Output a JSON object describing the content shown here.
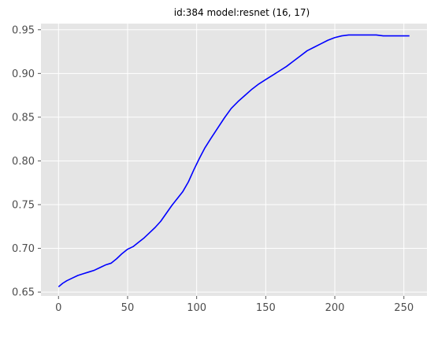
{
  "chart_data": {
    "type": "line",
    "title": "id:384 model:resnet (16, 17)",
    "xlabel": "",
    "ylabel": "",
    "xlim": [
      -12.7,
      266.7
    ],
    "ylim": [
      0.6456,
      0.957
    ],
    "xticks": [
      0,
      50,
      100,
      150,
      200,
      250
    ],
    "xtick_labels": [
      "0",
      "50",
      "100",
      "150",
      "200",
      "250"
    ],
    "yticks": [
      0.65,
      0.7,
      0.75,
      0.8,
      0.85,
      0.9,
      0.95
    ],
    "ytick_labels": [
      "0.65",
      "0.70",
      "0.75",
      "0.80",
      "0.85",
      "0.90",
      "0.95"
    ],
    "grid": true,
    "style": "ggplot",
    "colors": {
      "plot_background": "#e5e5e5",
      "grid": "#ffffff",
      "line": "#0000ff"
    },
    "series": [
      {
        "color": "#0000ff",
        "x": [
          0,
          3,
          6,
          10,
          14,
          18,
          22,
          26,
          30,
          34,
          38,
          42,
          46,
          50,
          54,
          58,
          62,
          66,
          70,
          74,
          78,
          82,
          86,
          90,
          94,
          98,
          102,
          106,
          110,
          115,
          120,
          125,
          130,
          135,
          140,
          145,
          150,
          155,
          160,
          165,
          170,
          175,
          180,
          185,
          190,
          195,
          200,
          205,
          210,
          215,
          220,
          225,
          230,
          235,
          240,
          245,
          250,
          254
        ],
        "y": [
          0.656,
          0.66,
          0.663,
          0.666,
          0.669,
          0.671,
          0.673,
          0.675,
          0.678,
          0.681,
          0.683,
          0.688,
          0.694,
          0.699,
          0.702,
          0.707,
          0.712,
          0.718,
          0.724,
          0.731,
          0.74,
          0.749,
          0.757,
          0.765,
          0.776,
          0.79,
          0.803,
          0.815,
          0.825,
          0.837,
          0.849,
          0.86,
          0.868,
          0.875,
          0.882,
          0.888,
          0.893,
          0.898,
          0.903,
          0.908,
          0.914,
          0.92,
          0.926,
          0.93,
          0.934,
          0.938,
          0.941,
          0.943,
          0.944,
          0.944,
          0.944,
          0.944,
          0.944,
          0.943,
          0.943,
          0.943,
          0.943,
          0.943
        ]
      }
    ]
  }
}
